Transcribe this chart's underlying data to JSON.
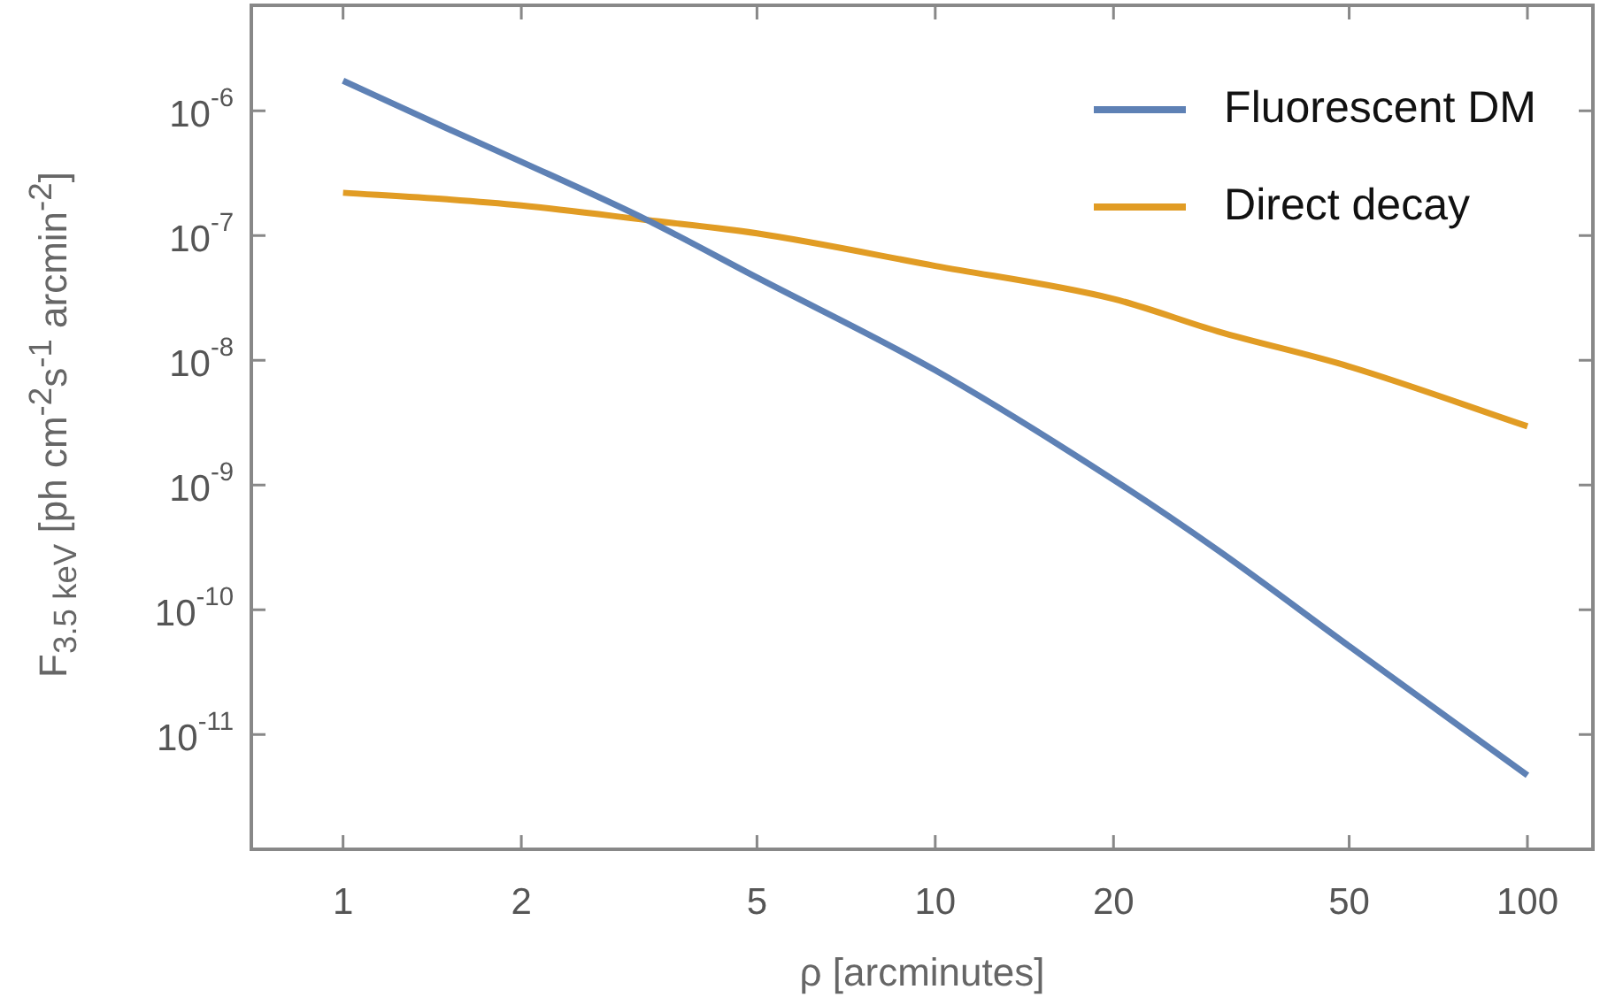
{
  "chart_data": {
    "type": "line",
    "xlabel": "ρ [arcminutes]",
    "ylabel": "F$_{3.5 keV}$ [ph cm$^{-2}$s$^{-1}$ arcmin$^{-2}$]",
    "log": "xy",
    "xlim": [
      0.72,
      129
    ],
    "ylim": [
      1.2e-12,
      7e-06
    ],
    "xticks": [
      1,
      2,
      5,
      10,
      20,
      50,
      100
    ],
    "yticks": [
      {
        "value": 1e-06,
        "label": "10$^{-6}$"
      },
      {
        "value": 1e-07,
        "label": "10$^{-7}$"
      },
      {
        "value": 1e-08,
        "label": "10$^{-8}$"
      },
      {
        "value": 1e-09,
        "label": "10$^{-9}$"
      },
      {
        "value": 1e-10,
        "label": "10$^{-10}$"
      },
      {
        "value": 1e-11,
        "label": "10$^{-11}$"
      }
    ],
    "grid": false,
    "legend": "top right",
    "x": [
      1,
      1.5,
      2,
      3.26,
      5,
      10,
      20,
      30,
      50,
      100
    ],
    "series": [
      {
        "name": "Fluorescent DM",
        "color": "#5e81b5",
        "values": [
          1.74e-06,
          7.2e-07,
          3.9e-07,
          1.33e-07,
          4.6e-08,
          8.3e-09,
          1.1e-09,
          3e-10,
          5.1e-11,
          4.7e-12
        ]
      },
      {
        "name": "Direct decay",
        "color": "#e19c24",
        "values": [
          2.2e-07,
          1.95e-07,
          1.74e-07,
          1.33e-07,
          1.04e-07,
          5.7e-08,
          3.1e-08,
          1.7e-08,
          8.9e-09,
          2.95e-09
        ]
      }
    ]
  }
}
